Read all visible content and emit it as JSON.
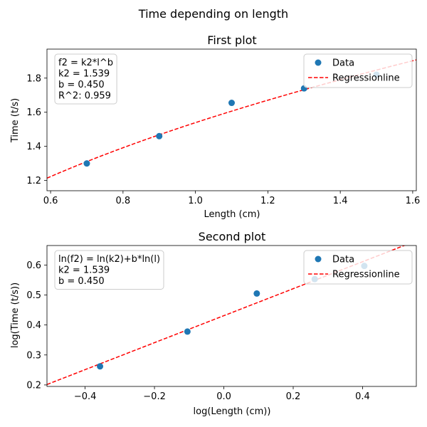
{
  "figure": {
    "suptitle": "Time depending on length"
  },
  "chart_data": [
    {
      "type": "scatter",
      "title": "First plot",
      "xlabel": "Length (cm)",
      "ylabel": "Time (t/s)",
      "xlim": [
        0.59,
        1.61
      ],
      "ylim": [
        1.14,
        1.97
      ],
      "xticks": [
        0.6,
        0.8,
        1.0,
        1.2,
        1.4,
        1.6
      ],
      "xtick_labels": [
        "0.6",
        "0.8",
        "1.0",
        "1.2",
        "1.4",
        "1.6"
      ],
      "yticks": [
        1.2,
        1.4,
        1.6,
        1.8
      ],
      "ytick_labels": [
        "1.2",
        "1.4",
        "1.6",
        "1.8"
      ],
      "grid": false,
      "legend_position": "upper right",
      "series": [
        {
          "name": "Data",
          "kind": "points",
          "color": "#1f77b4",
          "x": [
            0.7,
            0.9,
            1.1,
            1.3,
            1.5
          ],
          "y": [
            1.3,
            1.46,
            1.655,
            1.74,
            1.82
          ]
        },
        {
          "name": "Regressionline",
          "kind": "dashed-line",
          "color": "#ff0000",
          "model": "power",
          "k2": 1.539,
          "b": 0.45
        }
      ],
      "annotation": [
        "f2 = k2*l^b",
        "k2 = 1.539",
        "b = 0.450",
        "R^2: 0.959"
      ]
    },
    {
      "type": "scatter",
      "title": "Second plot",
      "xlabel": "log(Length (cm))",
      "ylabel": "log(Time (t/s))",
      "xlim": [
        -0.51,
        0.555
      ],
      "ylim": [
        0.195,
        0.665
      ],
      "xticks": [
        -0.4,
        -0.2,
        0.0,
        0.2,
        0.4
      ],
      "xtick_labels": [
        "−0.4",
        "−0.2",
        "0.0",
        "0.2",
        "0.4"
      ],
      "yticks": [
        0.2,
        0.3,
        0.4,
        0.5,
        0.6
      ],
      "ytick_labels": [
        "0.2",
        "0.3",
        "0.4",
        "0.5",
        "0.6"
      ],
      "grid": false,
      "legend_position": "upper right",
      "series": [
        {
          "name": "Data",
          "kind": "points",
          "color": "#1f77b4",
          "x": [
            -0.357,
            -0.105,
            0.095,
            0.262,
            0.405
          ],
          "y": [
            0.262,
            0.378,
            0.505,
            0.553,
            0.597
          ]
        },
        {
          "name": "Regressionline",
          "kind": "dashed-line",
          "color": "#ff0000",
          "model": "linear",
          "intercept": 0.431,
          "slope": 0.45
        }
      ],
      "annotation": [
        "ln(f2) = ln(k2)+b*ln(l)",
        "k2 = 1.539",
        "b = 0.450"
      ]
    }
  ]
}
